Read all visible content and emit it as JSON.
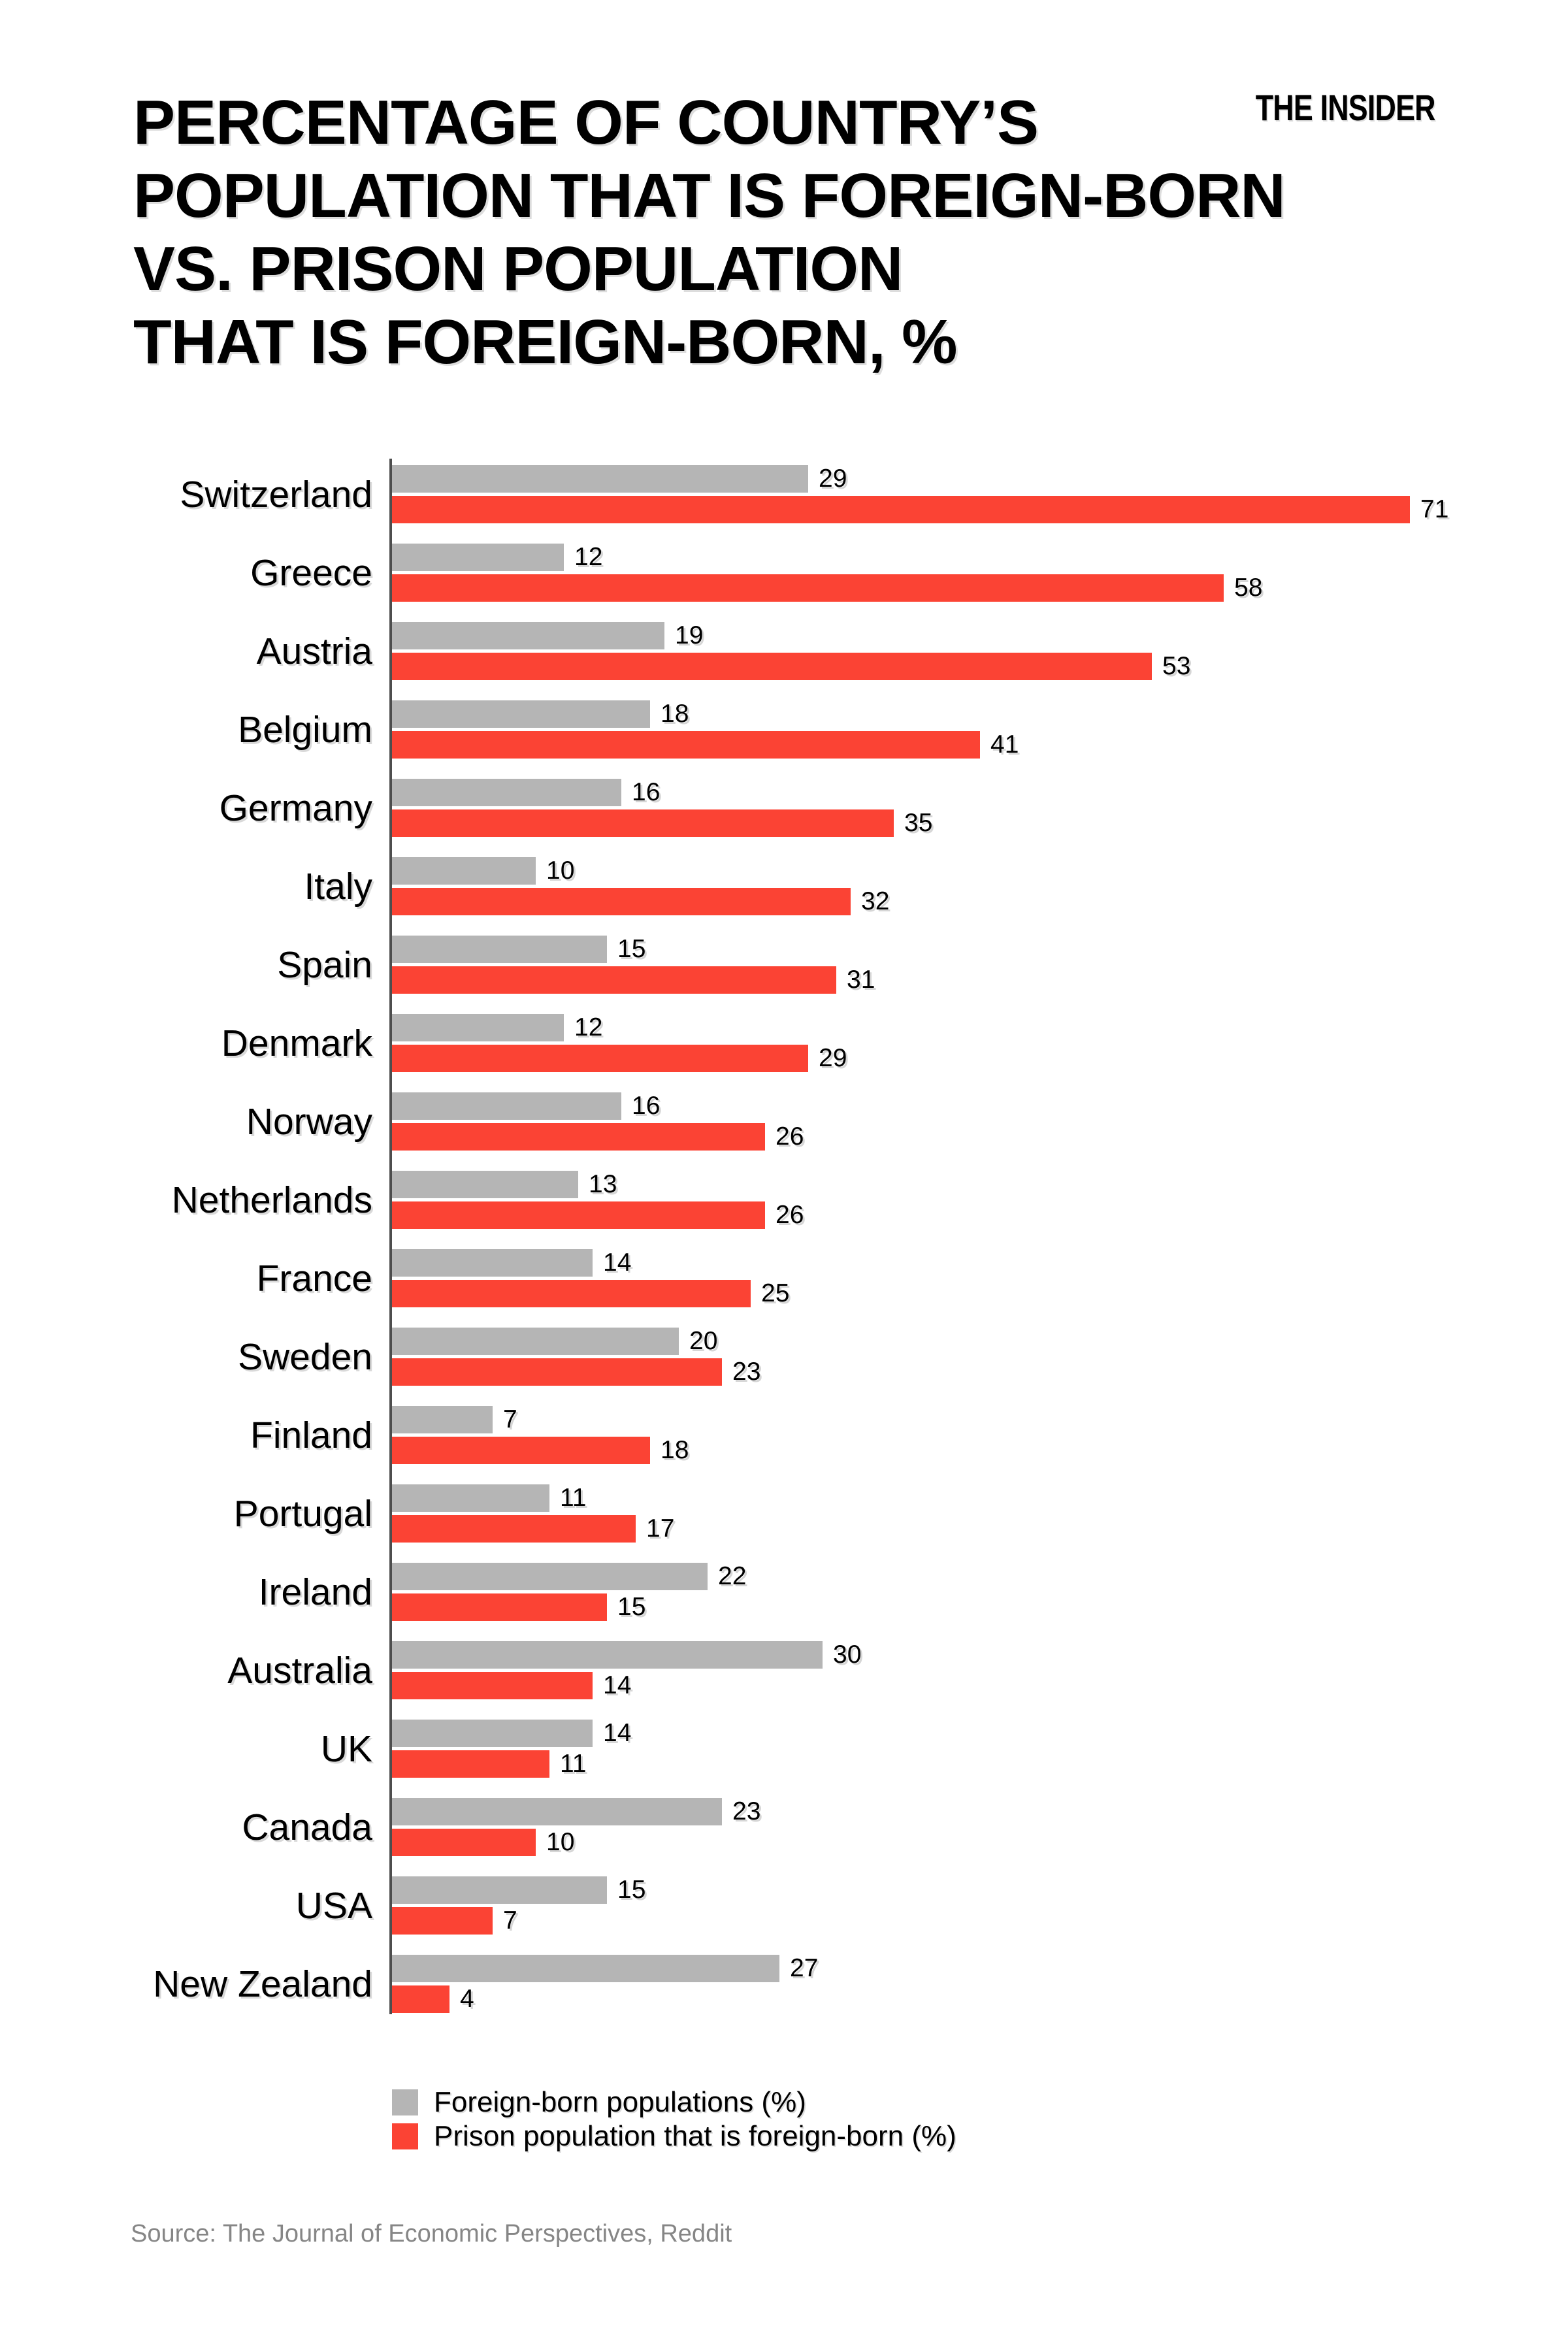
{
  "header": {
    "title": "PERCENTAGE OF COUNTRY’S\nPOPULATION THAT IS FOREIGN-BORN\nVS. PRISON POPULATION\nTHAT IS FOREIGN-BORN, %",
    "logo": "THE INSIDER"
  },
  "chart_data": {
    "type": "bar",
    "orientation": "horizontal",
    "title": "Percentage of country's population that is foreign-born vs. prison population that is foreign-born, %",
    "xlabel": "",
    "ylabel": "",
    "xlim": [
      0,
      82
    ],
    "grid": false,
    "legend_position": "bottom-left",
    "axis_color": "#4d4d4d",
    "categories": [
      "Switzerland",
      "Greece",
      "Austria",
      "Belgium",
      "Germany",
      "Italy",
      "Spain",
      "Denmark",
      "Norway",
      "Netherlands",
      "France",
      "Sweden",
      "Finland",
      "Portugal",
      "Ireland",
      "Australia",
      "UK",
      "Canada",
      "USA",
      "New Zealand"
    ],
    "series": [
      {
        "name": "Foreign-born populations (%)",
        "color": "#b5b5b5",
        "values": [
          29,
          12,
          19,
          18,
          16,
          10,
          15,
          12,
          16,
          13,
          14,
          20,
          7,
          11,
          22,
          30,
          14,
          23,
          15,
          27
        ]
      },
      {
        "name": "Prison population that is foreign-born (%)",
        "color": "#fb4334",
        "values": [
          71,
          58,
          53,
          41,
          35,
          32,
          31,
          29,
          26,
          26,
          25,
          23,
          18,
          17,
          15,
          14,
          11,
          10,
          7,
          4
        ]
      }
    ]
  },
  "source": {
    "text": "Source: The Journal of Economic Perspectives, Reddit"
  }
}
